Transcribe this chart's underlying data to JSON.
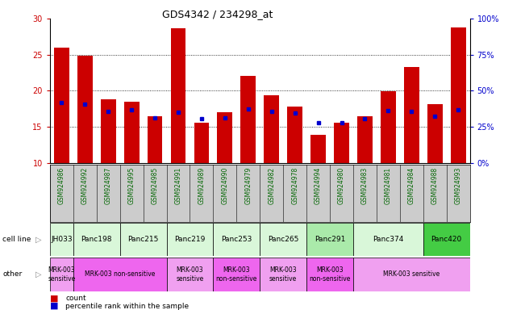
{
  "title": "GDS4342 / 234298_at",
  "gsm_labels": [
    "GSM924986",
    "GSM924992",
    "GSM924987",
    "GSM924995",
    "GSM924985",
    "GSM924991",
    "GSM924989",
    "GSM924990",
    "GSM924979",
    "GSM924982",
    "GSM924978",
    "GSM924994",
    "GSM924980",
    "GSM924983",
    "GSM924981",
    "GSM924984",
    "GSM924988",
    "GSM924993"
  ],
  "counts": [
    26.0,
    24.8,
    18.8,
    18.5,
    16.5,
    28.7,
    15.5,
    17.0,
    22.0,
    19.4,
    17.8,
    13.9,
    15.6,
    16.5,
    19.9,
    23.3,
    18.1,
    28.8
  ],
  "blue_sq_y": [
    18.3,
    18.1,
    17.1,
    17.4,
    16.2,
    17.0,
    16.1,
    16.2,
    17.5,
    17.1,
    16.9,
    15.6,
    15.6,
    16.1,
    17.2,
    17.1,
    16.5,
    17.4
  ],
  "cell_lines": [
    {
      "name": "JH033",
      "start": 0,
      "end": 1,
      "color": "#d9f7d9"
    },
    {
      "name": "Panc198",
      "start": 1,
      "end": 3,
      "color": "#d9f7d9"
    },
    {
      "name": "Panc215",
      "start": 3,
      "end": 5,
      "color": "#d9f7d9"
    },
    {
      "name": "Panc219",
      "start": 5,
      "end": 7,
      "color": "#d9f7d9"
    },
    {
      "name": "Panc253",
      "start": 7,
      "end": 9,
      "color": "#d9f7d9"
    },
    {
      "name": "Panc265",
      "start": 9,
      "end": 11,
      "color": "#d9f7d9"
    },
    {
      "name": "Panc291",
      "start": 11,
      "end": 13,
      "color": "#aaeaaa"
    },
    {
      "name": "Panc374",
      "start": 13,
      "end": 16,
      "color": "#d9f7d9"
    },
    {
      "name": "Panc420",
      "start": 16,
      "end": 18,
      "color": "#44cc44"
    }
  ],
  "other_rows": [
    {
      "label": "MRK-003\nsensitive",
      "start": 0,
      "end": 1,
      "color": "#f0a0f0"
    },
    {
      "label": "MRK-003 non-sensitive",
      "start": 1,
      "end": 5,
      "color": "#ee66ee"
    },
    {
      "label": "MRK-003\nsensitive",
      "start": 5,
      "end": 7,
      "color": "#f0a0f0"
    },
    {
      "label": "MRK-003\nnon-sensitive",
      "start": 7,
      "end": 9,
      "color": "#ee66ee"
    },
    {
      "label": "MRK-003\nsensitive",
      "start": 9,
      "end": 11,
      "color": "#f0a0f0"
    },
    {
      "label": "MRK-003\nnon-sensitive",
      "start": 11,
      "end": 13,
      "color": "#ee66ee"
    },
    {
      "label": "MRK-003 sensitive",
      "start": 13,
      "end": 18,
      "color": "#f0a0f0"
    }
  ],
  "ylim_left": [
    10,
    30
  ],
  "ylim_right": [
    0,
    100
  ],
  "yticks_left": [
    10,
    15,
    20,
    25,
    30
  ],
  "yticks_right": [
    0,
    25,
    50,
    75,
    100
  ],
  "ytick_labels_right": [
    "0%",
    "25%",
    "50%",
    "75%",
    "100%"
  ],
  "bar_color": "#cc0000",
  "dot_color": "#0000cc",
  "grid_color": "#000000",
  "bg_color": "#ffffff",
  "xlabel_color": "#006600",
  "gsm_bg_color": "#cccccc",
  "tick_color_left": "#cc0000",
  "tick_color_right": "#0000cc"
}
